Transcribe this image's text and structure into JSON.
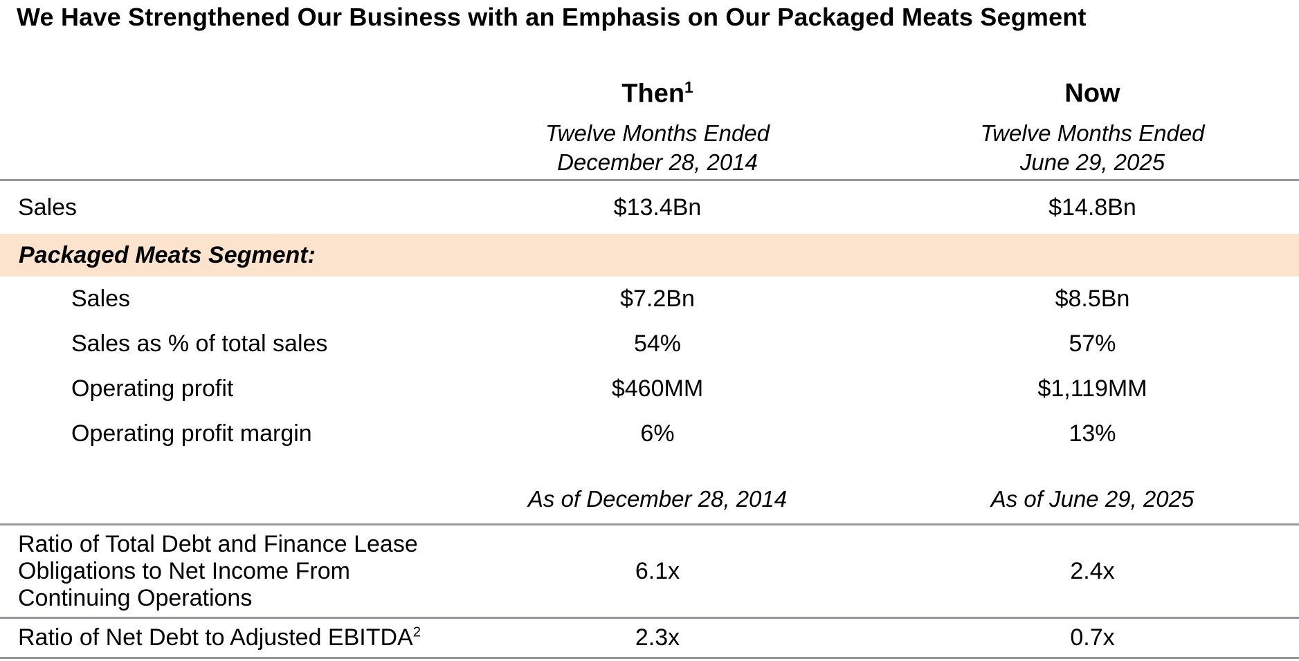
{
  "title": "We Have Strengthened Our Business with an Emphasis on Our Packaged Meats Segment",
  "columns": {
    "then": {
      "label": "Then",
      "superscript": "1",
      "subtitle_line1": "Twelve Months Ended",
      "subtitle_line2": "December 28, 2014",
      "asof": "As of December 28, 2014"
    },
    "now": {
      "label": "Now",
      "subtitle_line1": "Twelve Months Ended",
      "subtitle_line2": "June 29, 2025",
      "asof": "As of June 29, 2025"
    }
  },
  "rows": {
    "total_sales": {
      "label": "Sales",
      "then": "$13.4Bn",
      "now": "$14.8Bn"
    },
    "section": {
      "label": "Packaged Meats Segment:"
    },
    "pm_sales": {
      "label": "Sales",
      "then": "$7.2Bn",
      "now": "$8.5Bn"
    },
    "pm_sales_pct": {
      "label": "Sales as % of total sales",
      "then": "54%",
      "now": "57%"
    },
    "pm_op_profit": {
      "label": "Operating profit",
      "then": "$460MM",
      "now": "$1,119MM"
    },
    "pm_op_margin": {
      "label": "Operating profit margin",
      "then": "6%",
      "now": "13%"
    },
    "ratio_debt_ni": {
      "label_lines": [
        "Ratio of Total Debt and Finance Lease",
        "Obligations to Net Income From",
        "Continuing Operations"
      ],
      "then": "6.1x",
      "now": "2.4x"
    },
    "ratio_netdebt_ebitda": {
      "label": "Ratio of Net Debt to Adjusted EBITDA",
      "superscript": "2",
      "then": "2.3x",
      "now": "0.7x"
    }
  },
  "colors": {
    "highlight": "#FCE3CD",
    "rule": "#95959D"
  }
}
